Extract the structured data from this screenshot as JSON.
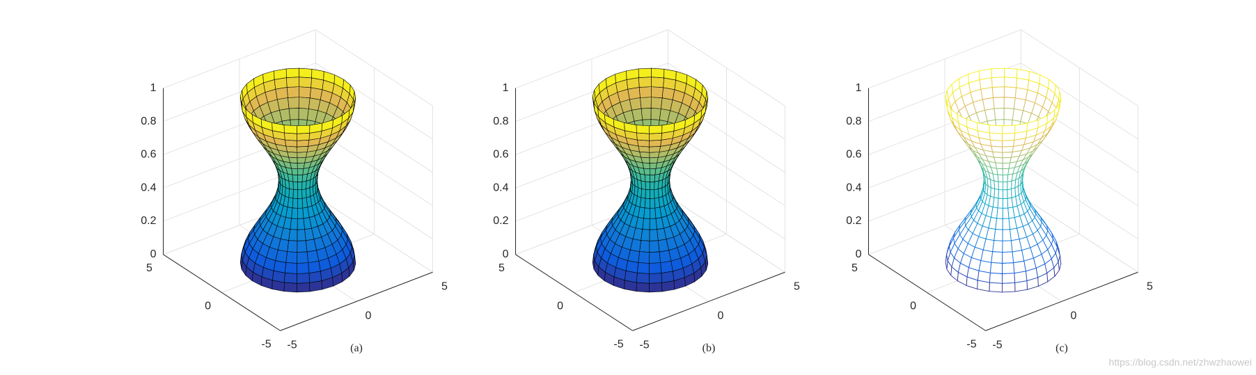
{
  "chart_data": [
    {
      "type": "surface",
      "caption": "(a)",
      "colormap": "parula",
      "edge_color": "#000000",
      "view": [
        -37.5,
        30
      ],
      "grid": true,
      "z": [
        0,
        0.05,
        0.1,
        0.15,
        0.2,
        0.25,
        0.3,
        0.35,
        0.4,
        0.45,
        0.5,
        0.55,
        0.6,
        0.65,
        0.7,
        0.75,
        0.8,
        0.85,
        0.9,
        0.95,
        1
      ],
      "radius": [
        3,
        2.951,
        2.809,
        2.588,
        2.309,
        2,
        1.691,
        1.412,
        1.191,
        1.049,
        1,
        1.049,
        1.191,
        1.412,
        1.691,
        2,
        2.309,
        2.588,
        2.809,
        2.951,
        3
      ],
      "xlim": [
        -5,
        5
      ],
      "ylim": [
        -5,
        5
      ],
      "zlim": [
        0,
        1
      ],
      "xticks": [
        -5,
        0,
        5
      ],
      "yticks": [
        -5,
        0,
        5
      ],
      "zticks": [
        0,
        0.2,
        0.4,
        0.6,
        0.8,
        1
      ]
    },
    {
      "type": "surface",
      "caption": "(b)",
      "colormap": "parula",
      "edge_color": "#000000",
      "view": [
        -37.5,
        30
      ],
      "grid": true,
      "z": [
        0,
        0.05,
        0.1,
        0.15,
        0.2,
        0.25,
        0.3,
        0.35,
        0.4,
        0.45,
        0.5,
        0.55,
        0.6,
        0.65,
        0.7,
        0.75,
        0.8,
        0.85,
        0.9,
        0.95,
        1
      ],
      "radius": [
        3,
        2.951,
        2.809,
        2.588,
        2.309,
        2,
        1.691,
        1.412,
        1.191,
        1.049,
        1,
        1.049,
        1.191,
        1.412,
        1.691,
        2,
        2.309,
        2.588,
        2.809,
        2.951,
        3
      ],
      "xlim": [
        -5,
        5
      ],
      "ylim": [
        -5,
        5
      ],
      "zlim": [
        0,
        1
      ],
      "xticks": [
        -5,
        0,
        5
      ],
      "yticks": [
        -5,
        0,
        5
      ],
      "zticks": [
        0,
        0.2,
        0.4,
        0.6,
        0.8,
        1
      ]
    },
    {
      "type": "mesh",
      "caption": "(c)",
      "colormap": "parula",
      "view": [
        -37.5,
        30
      ],
      "grid": true,
      "z": [
        0,
        0.05,
        0.1,
        0.15,
        0.2,
        0.25,
        0.3,
        0.35,
        0.4,
        0.45,
        0.5,
        0.55,
        0.6,
        0.65,
        0.7,
        0.75,
        0.8,
        0.85,
        0.9,
        0.95,
        1
      ],
      "radius": [
        3,
        2.951,
        2.809,
        2.588,
        2.309,
        2,
        1.691,
        1.412,
        1.191,
        1.049,
        1,
        1.049,
        1.191,
        1.412,
        1.691,
        2,
        2.309,
        2.588,
        2.809,
        2.951,
        3
      ],
      "xlim": [
        -5,
        5
      ],
      "ylim": [
        -5,
        5
      ],
      "zlim": [
        0,
        1
      ],
      "xticks": [
        -5,
        0,
        5
      ],
      "yticks": [
        -5,
        0,
        5
      ],
      "zticks": [
        0,
        0.2,
        0.4,
        0.6,
        0.8,
        1
      ]
    }
  ],
  "watermark": "https://blog.csdn.net/zhwzhaowei"
}
